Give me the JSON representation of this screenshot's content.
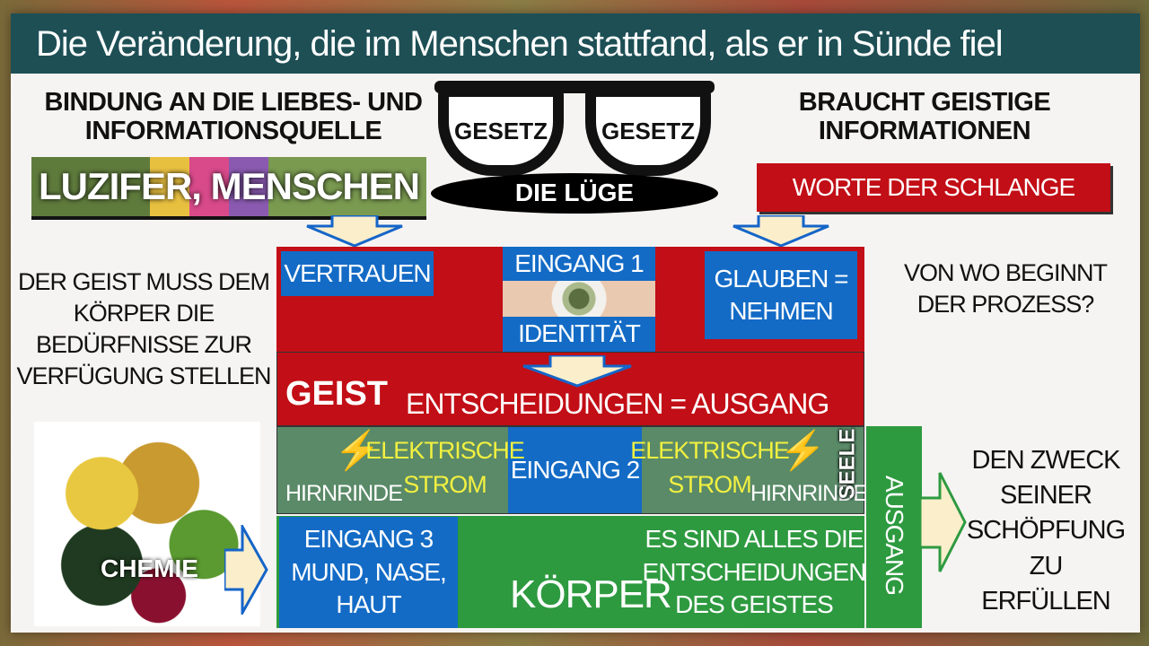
{
  "title": "Die Veränderung, die im Menschen stattfand, als er in Sünde fiel",
  "left_heading": "BINDUNG AN DIE LIEBES- UND INFORMATIONSQUELLE",
  "luzifer_banner": "LUZIFER, MENSCHEN",
  "glasses": {
    "left_lens": "GESETZ",
    "right_lens": "GESETZ",
    "base": "DIE LÜGE"
  },
  "right_heading": "BRAUCHT GEISTIGE INFORMATIONEN",
  "schlange_box": "WORTE DER SCHLANGE",
  "left_text": "DER GEIST MUSS DEM KÖRPER DIE BEDÜRFNISSE ZUR VERFÜGUNG STELLEN",
  "right_question": "VON WO BEGINNT DER PROZESS?",
  "vertrauen": "VERTRAUEN",
  "eingang1": {
    "label": "EINGANG 1",
    "sub": "IDENTITÄT"
  },
  "glauben": "GLAUBEN = NEHMEN",
  "geist": {
    "label": "GEIST",
    "text": "ENTSCHEIDUNGEN = AUSGANG"
  },
  "seele": {
    "label": "SEELE",
    "hirnrinde": "HIRNRINDE",
    "strom": "ELEKTRISCHE STROM",
    "eingang2": "EINGANG 2"
  },
  "koerper": {
    "eingang3": "EINGANG 3 MUND, NASE, HAUT",
    "label": "KÖRPER",
    "text": "ES SIND ALLES DIE ENTSCHEIDUNGEN DES GEISTES"
  },
  "chemie": "CHEMIE",
  "ausgang": "AUSGANG",
  "zweck": "DEN ZWECK SEINER SCHÖPFUNG ZU ERFÜLLEN",
  "colors": {
    "title_bar": "#1d4f55",
    "red": "#c20e16",
    "blue": "#136bc6",
    "green": "#2e9a40",
    "seele_green": "#5a8a68"
  }
}
